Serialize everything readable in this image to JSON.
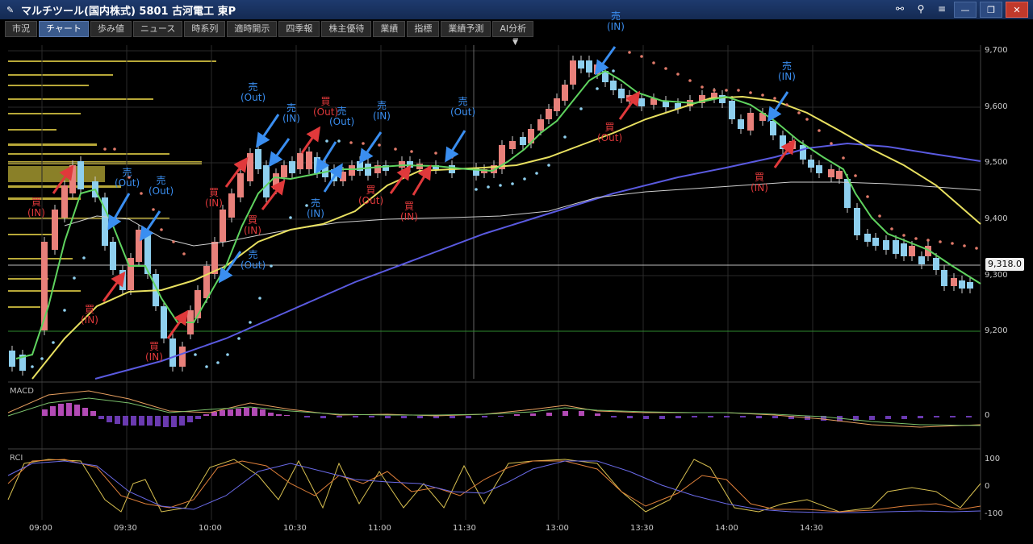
{
  "window": {
    "title": "マルチツール(国内株式) 5801 古河電工 東P"
  },
  "tabs": [
    {
      "label": "市況"
    },
    {
      "label": "チャート"
    },
    {
      "label": "歩み値"
    },
    {
      "label": "ニュース"
    },
    {
      "label": "時系列"
    },
    {
      "label": "適時開示"
    },
    {
      "label": "四季報"
    },
    {
      "label": "株主優待"
    },
    {
      "label": "業績"
    },
    {
      "label": "指標"
    },
    {
      "label": "業績予測"
    },
    {
      "label": "AI分析"
    }
  ],
  "price_axis": {
    "labels": [
      "9,700",
      "9,600",
      "9,500",
      "9,400",
      "9,300",
      "9,200"
    ]
  },
  "current_price": "9,318.0",
  "time_axis": {
    "labels": [
      "09:00",
      "09:30",
      "10:00",
      "10:30",
      "11:00",
      "11:30",
      "13:00",
      "13:30",
      "14:00",
      "14:30"
    ]
  },
  "macd_panel": {
    "name": "MACD",
    "zero_label": "0"
  },
  "rci_panel": {
    "name": "RCI",
    "labels": [
      "100",
      "0",
      "-100"
    ]
  },
  "annotations": [
    {
      "type": "buy",
      "text1": "買",
      "text2": "(IN)"
    },
    {
      "type": "sell",
      "text1": "売",
      "text2": "(Out)"
    },
    {
      "type": "sell",
      "text1": "売",
      "text2": "(Out)"
    },
    {
      "type": "buy",
      "text1": "買",
      "text2": "(IN)"
    },
    {
      "type": "buy",
      "text1": "買",
      "text2": "(IN)"
    },
    {
      "type": "buy",
      "text1": "買",
      "text2": "(IN)"
    },
    {
      "type": "sell",
      "text1": "売",
      "text2": "(Out)"
    },
    {
      "type": "sell",
      "text1": "売",
      "text2": "(IN)"
    },
    {
      "type": "buy",
      "text1": "買",
      "text2": "(IN)"
    },
    {
      "type": "sell",
      "text1": "売",
      "text2": "(Out)"
    },
    {
      "type": "buy",
      "text1": "買",
      "text2": "(Out)"
    },
    {
      "type": "sell",
      "text1": "売",
      "text2": "(Out)"
    },
    {
      "type": "sell",
      "text1": "売",
      "text2": "(IN)"
    },
    {
      "type": "sell",
      "text1": "売",
      "text2": "(IN)"
    },
    {
      "type": "buy",
      "text1": "買",
      "text2": "(Out)"
    },
    {
      "type": "buy",
      "text1": "買",
      "text2": "(IN)"
    },
    {
      "type": "sell",
      "text1": "売",
      "text2": "(Out)"
    },
    {
      "type": "sell",
      "text1": "売",
      "text2": "(IN)"
    },
    {
      "type": "buy",
      "text1": "買",
      "text2": "(Out)"
    },
    {
      "type": "sell",
      "text1": "売",
      "text2": "(IN)"
    },
    {
      "type": "buy",
      "text1": "買",
      "text2": "(IN)"
    }
  ],
  "colors": {
    "up": "#e8807a",
    "down": "#8ecfee",
    "ma_short": "#5fd35f",
    "ma_mid": "#e8e060",
    "ma_long": "#5a5ae0",
    "ma_extra": "#cfcfcf",
    "sell": "#3a8ef0",
    "buy": "#e0393b"
  }
}
